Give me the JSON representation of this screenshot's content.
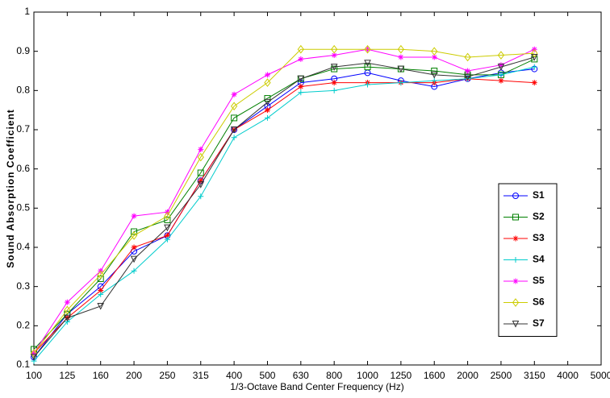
{
  "chart_data": {
    "type": "line",
    "xlabel": "1/3-Octave Band Center Frequency (Hz)",
    "ylabel": "Sound Absorption Coefficient",
    "categories": [
      "100",
      "125",
      "160",
      "200",
      "250",
      "315",
      "400",
      "500",
      "630",
      "800",
      "1000",
      "1250",
      "1600",
      "2000",
      "2500",
      "3150",
      "4000",
      "5000"
    ],
    "ylim": [
      0.1,
      1
    ],
    "yticks": [
      0.1,
      0.2,
      0.3,
      0.4,
      0.5,
      0.6,
      0.7,
      0.8,
      0.9,
      1
    ],
    "grid": false,
    "legend": "right",
    "series": [
      {
        "name": "S1",
        "color": "#0000ff",
        "marker": "circle",
        "values": [
          0.12,
          0.23,
          0.3,
          0.39,
          0.43,
          0.57,
          0.7,
          0.76,
          0.82,
          0.83,
          0.845,
          0.825,
          0.81,
          0.83,
          0.845,
          0.855,
          null,
          null
        ]
      },
      {
        "name": "S2",
        "color": "#008000",
        "marker": "square",
        "values": [
          0.14,
          0.23,
          0.32,
          0.44,
          0.47,
          0.59,
          0.73,
          0.78,
          0.83,
          0.855,
          0.86,
          0.855,
          0.85,
          0.84,
          0.84,
          0.88,
          null,
          null
        ]
      },
      {
        "name": "S3",
        "color": "#ff0000",
        "marker": "star",
        "values": [
          0.13,
          0.22,
          0.29,
          0.4,
          0.43,
          0.57,
          0.7,
          0.75,
          0.81,
          0.82,
          0.82,
          0.82,
          0.82,
          0.83,
          0.825,
          0.82,
          null,
          null
        ]
      },
      {
        "name": "S4",
        "color": "#00cccc",
        "marker": "plus",
        "values": [
          0.11,
          0.21,
          0.28,
          0.34,
          0.42,
          0.53,
          0.68,
          0.73,
          0.795,
          0.8,
          0.815,
          0.82,
          0.825,
          0.83,
          0.84,
          0.86,
          null,
          null
        ]
      },
      {
        "name": "S5",
        "color": "#ff00ff",
        "marker": "star",
        "values": [
          0.13,
          0.26,
          0.34,
          0.48,
          0.49,
          0.65,
          0.79,
          0.84,
          0.88,
          0.89,
          0.905,
          0.885,
          0.885,
          0.85,
          0.865,
          0.905,
          null,
          null
        ]
      },
      {
        "name": "S6",
        "color": "#cccc00",
        "marker": "diamond",
        "values": [
          0.13,
          0.24,
          0.33,
          0.43,
          0.48,
          0.63,
          0.76,
          0.82,
          0.905,
          0.905,
          0.905,
          0.905,
          0.9,
          0.885,
          0.89,
          0.895,
          null,
          null
        ]
      },
      {
        "name": "S7",
        "color": "#333333",
        "marker": "triangle",
        "values": [
          0.12,
          0.22,
          0.25,
          0.37,
          0.45,
          0.56,
          0.7,
          0.77,
          0.83,
          0.86,
          0.87,
          0.855,
          0.84,
          0.835,
          0.86,
          0.885,
          null,
          null
        ]
      }
    ]
  }
}
